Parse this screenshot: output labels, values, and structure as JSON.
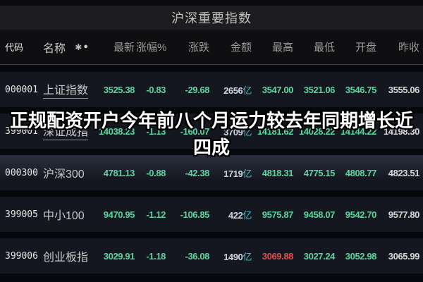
{
  "app": {
    "title": "沪深重要指数"
  },
  "overlay": {
    "text": "正规配资开户今年前八个月运力较去年同期增长近四成"
  },
  "colors": {
    "down_green": "#5cd4a0",
    "up_red": "#dd514d",
    "flat_white": "#d8d8d8",
    "amount_number": "#ccd5df",
    "amount_unit_teal": "#3fc8d5"
  },
  "table": {
    "headers": {
      "code": "代码",
      "name": "名称",
      "latest": "最新",
      "pct": "涨幅%",
      "chg": "涨跌",
      "amount": "金额",
      "high": "最高",
      "low": "最低",
      "open": "开盘",
      "prev_close": "昨收"
    },
    "amount_unit": "亿",
    "rows": [
      {
        "code": "000001",
        "name": "上证指数",
        "underline": true,
        "highlight": false,
        "cells": [
          {
            "v": "3525.38",
            "c": "down"
          },
          {
            "v": "-0.83",
            "c": "down"
          },
          {
            "v": "-29.68",
            "c": "down"
          },
          {
            "v": "2656",
            "unit": "亿",
            "c": "amt"
          },
          {
            "v": "3547.00",
            "c": "down"
          },
          {
            "v": "3521.06",
            "c": "down"
          },
          {
            "v": "3546.75",
            "c": "down"
          },
          {
            "v": "3555.06",
            "c": "flat"
          }
        ]
      },
      {
        "code": "399001",
        "name": "深证成指",
        "underline": true,
        "highlight": false,
        "cells": [
          {
            "v": "14038.23",
            "c": "down"
          },
          {
            "v": "-1.13",
            "c": "down"
          },
          {
            "v": "-160.07",
            "c": "down"
          },
          {
            "v": "3709",
            "unit": "亿",
            "c": "amt"
          },
          {
            "v": "14181.62",
            "c": "down"
          },
          {
            "v": "14028.22",
            "c": "down"
          },
          {
            "v": "14144.22",
            "c": "down"
          },
          {
            "v": "14198.30",
            "c": "flat"
          }
        ]
      },
      {
        "code": "000300",
        "name": "沪深300",
        "underline": false,
        "highlight": true,
        "cells": [
          {
            "v": "4781.13",
            "c": "down"
          },
          {
            "v": "-0.88",
            "c": "down"
          },
          {
            "v": "-42.38",
            "c": "down"
          },
          {
            "v": "1719",
            "unit": "亿",
            "c": "amt"
          },
          {
            "v": "4818.31",
            "c": "down"
          },
          {
            "v": "4775.15",
            "c": "down"
          },
          {
            "v": "4808.77",
            "c": "down"
          },
          {
            "v": "4823.51",
            "c": "flat"
          }
        ]
      },
      {
        "code": "399005",
        "name": "中小100",
        "underline": false,
        "highlight": false,
        "cells": [
          {
            "v": "9470.95",
            "c": "down"
          },
          {
            "v": "-1.12",
            "c": "down"
          },
          {
            "v": "-106.85",
            "c": "down"
          },
          {
            "v": "422",
            "unit": "亿",
            "c": "amt"
          },
          {
            "v": "9575.87",
            "c": "down"
          },
          {
            "v": "9458.07",
            "c": "down"
          },
          {
            "v": "9542.70",
            "c": "down"
          },
          {
            "v": "9577.80",
            "c": "flat"
          }
        ]
      },
      {
        "code": "399006",
        "name": "创业板指",
        "underline": false,
        "highlight": false,
        "cells": [
          {
            "v": "3029.91",
            "c": "down"
          },
          {
            "v": "-1.18",
            "c": "down"
          },
          {
            "v": "-36.08",
            "c": "down"
          },
          {
            "v": "1490",
            "unit": "亿",
            "c": "amt"
          },
          {
            "v": "3069.88",
            "c": "up"
          },
          {
            "v": "3027.24",
            "c": "down"
          },
          {
            "v": "3052.98",
            "c": "down"
          },
          {
            "v": "3065.99",
            "c": "flat"
          }
        ]
      }
    ]
  }
}
